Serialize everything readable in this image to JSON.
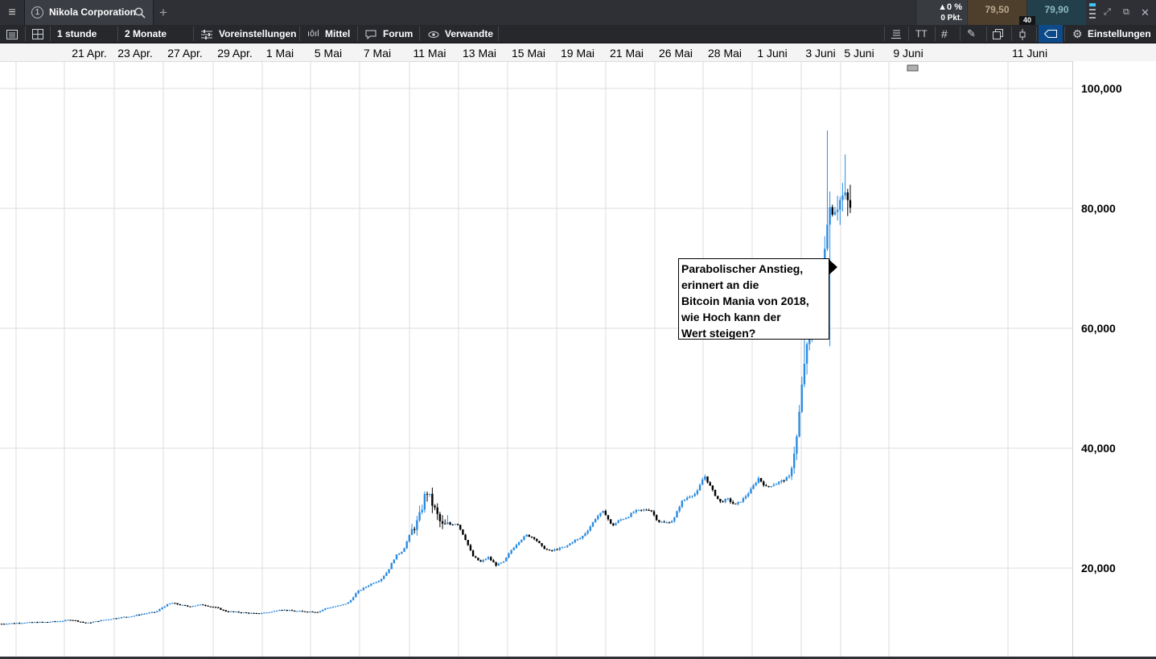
{
  "topbar": {
    "tab_number": "1",
    "tab_title": "Nikola Corporation",
    "change_pct": "▲0 %",
    "change_pts": "0 Pkt.",
    "bid": "79,50",
    "ask": "79,90",
    "spread": "40"
  },
  "toolbar": {
    "interval": "1 stunde",
    "range": "2 Monate",
    "presets": "Voreinstellungen",
    "indicators": "Mittel",
    "forum": "Forum",
    "related": "Verwandte",
    "settings": "Einstellungen",
    "text_size_icon_label": "TT"
  },
  "chart_data": {
    "type": "candlestick",
    "instrument": "Nikola Corporation",
    "interval": "1 stunde",
    "range": "2 Monate",
    "x_ticks": [
      "21 Apr.",
      "23 Apr.",
      "27 Apr.",
      "29 Apr.",
      "1 Mai",
      "5 Mai",
      "7 Mai",
      "11 Mai",
      "13 Mai",
      "15 Mai",
      "19 Mai",
      "21 Mai",
      "26 Mai",
      "28 Mai",
      "1 Juni",
      "3 Juni",
      "5 Juni",
      "9 Juni",
      "11 Juni"
    ],
    "y_ticks": [
      "20,000",
      "40,000",
      "60,000",
      "80,000",
      "100,000"
    ],
    "y_tick_values": [
      20,
      40,
      60,
      80,
      100
    ],
    "ylim": [
      5,
      105
    ],
    "grid": true,
    "up_color": "#2b8be0",
    "down_color": "#000000",
    "annotation": [
      "Parabolischer Anstieg,",
      "erinnert an die",
      "Bitcoin Mania von 2018,",
      "wie Hoch kann der",
      "Wert steigen?"
    ],
    "anchors": [
      [
        0,
        10.7
      ],
      [
        3,
        10.9
      ],
      [
        6,
        11.0
      ],
      [
        8,
        11.2
      ],
      [
        9,
        11.4
      ],
      [
        11,
        10.8
      ],
      [
        13,
        11.3
      ],
      [
        15,
        11.7
      ],
      [
        17,
        12.0
      ],
      [
        18,
        12.3
      ],
      [
        20,
        12.7
      ],
      [
        21,
        13.6
      ],
      [
        22,
        14.2
      ],
      [
        24,
        13.6
      ],
      [
        26,
        13.9
      ],
      [
        28,
        13.3
      ],
      [
        29,
        12.8
      ],
      [
        31,
        12.6
      ],
      [
        33,
        12.4
      ],
      [
        35,
        12.7
      ],
      [
        36,
        13.1
      ],
      [
        38,
        12.8
      ],
      [
        41,
        12.7
      ],
      [
        42,
        13.3
      ],
      [
        44,
        13.8
      ],
      [
        45,
        14.3
      ],
      [
        46,
        16.0
      ],
      [
        48,
        17.5
      ],
      [
        49,
        18.0
      ],
      [
        50,
        19.5
      ],
      [
        51,
        22.0
      ],
      [
        52,
        23.0
      ],
      [
        53,
        26.0
      ],
      [
        54,
        28.0
      ],
      [
        55,
        33.0
      ],
      [
        56,
        30.0
      ],
      [
        57,
        27.0
      ],
      [
        59,
        27.5
      ],
      [
        60,
        25.0
      ],
      [
        61,
        22.0
      ],
      [
        62,
        21.0
      ],
      [
        63,
        21.8
      ],
      [
        64,
        20.5
      ],
      [
        65,
        21.0
      ],
      [
        66,
        23.0
      ],
      [
        67,
        24.5
      ],
      [
        68,
        25.5
      ],
      [
        69,
        25.0
      ],
      [
        70,
        23.5
      ],
      [
        71,
        22.8
      ],
      [
        72,
        23.2
      ],
      [
        73,
        23.5
      ],
      [
        74,
        24.5
      ],
      [
        75,
        25.0
      ],
      [
        76,
        26.5
      ],
      [
        77,
        28.5
      ],
      [
        78,
        29.5
      ],
      [
        79,
        27.0
      ],
      [
        80,
        28.0
      ],
      [
        81,
        28.5
      ],
      [
        82,
        29.5
      ],
      [
        84,
        29.8
      ],
      [
        85,
        27.8
      ],
      [
        86,
        27.5
      ],
      [
        87,
        28.0
      ],
      [
        88,
        31.0
      ],
      [
        89,
        32.0
      ],
      [
        90,
        32.5
      ],
      [
        91,
        35.5
      ],
      [
        92,
        33.0
      ],
      [
        93,
        31.0
      ],
      [
        94,
        31.5
      ],
      [
        95,
        30.5
      ],
      [
        96,
        31.5
      ],
      [
        97,
        33.0
      ],
      [
        98,
        35.0
      ],
      [
        99,
        33.5
      ],
      [
        100,
        34.0
      ],
      [
        101,
        34.5
      ],
      [
        102,
        35.2
      ],
      [
        103,
        42.0
      ],
      [
        104,
        55.0
      ],
      [
        105,
        60.0
      ],
      [
        106,
        66.0
      ],
      [
        107,
        80.0
      ],
      [
        108,
        80.5
      ],
      [
        109,
        82.0
      ],
      [
        110,
        80.0
      ]
    ]
  }
}
